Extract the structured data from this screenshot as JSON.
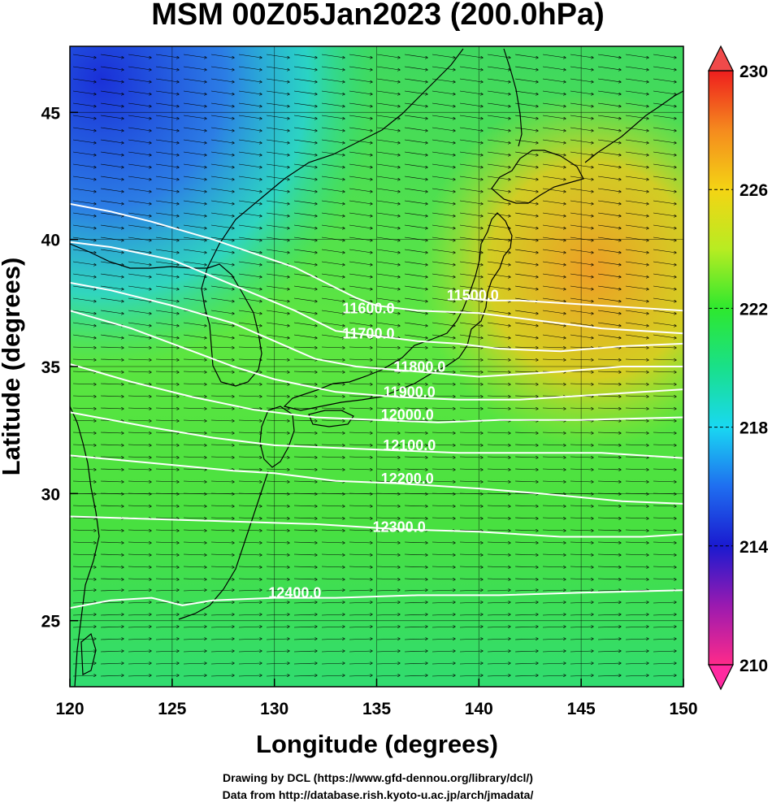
{
  "title": "MSM 00Z05Jan2023 (200.0hPa)",
  "xlabel": "Longitude (degrees)",
  "ylabel": "Latitude  (degrees)",
  "credits": [
    "Drawing by DCL (https://www.gfd-dennou.org/library/dcl/)",
    "Data from http://database.rish.kyoto-u.ac.jp/arch/jmadata/"
  ],
  "chart_data": {
    "type": "heatmap",
    "map": "contour + wind vector map over Japan and surrounding area",
    "xlim": [
      120,
      150
    ],
    "ylim": [
      22.4,
      47.6
    ],
    "x_ticks": [
      "120",
      "125",
      "130",
      "135",
      "140",
      "145",
      "150"
    ],
    "y_ticks": [
      "25",
      "30",
      "35",
      "40",
      "45"
    ],
    "colorbar": {
      "range": [
        210,
        230
      ],
      "tick_labels": [
        "230",
        "226",
        "222",
        "218",
        "214",
        "210"
      ],
      "colors": [
        "#ff2a8a",
        "#9a1ab0",
        "#1a1ad0",
        "#1f6ef0",
        "#19d8f2",
        "#19e08a",
        "#2ee82e",
        "#b8ec22",
        "#f4d414",
        "#f58a1e",
        "#ee1e1e"
      ]
    },
    "contour_labels": [
      {
        "text": "11500.0",
        "lon": 139.7,
        "lat": 37.6
      },
      {
        "text": "11600.0",
        "lon": 134.6,
        "lat": 37.1
      },
      {
        "text": "11700.0",
        "lon": 134.6,
        "lat": 36.1
      },
      {
        "text": "11800.0",
        "lon": 137.1,
        "lat": 34.8
      },
      {
        "text": "11900.0",
        "lon": 136.6,
        "lat": 33.8
      },
      {
        "text": "12000.0",
        "lon": 136.5,
        "lat": 32.9
      },
      {
        "text": "12100.0",
        "lon": 136.6,
        "lat": 31.7
      },
      {
        "text": "12200.0",
        "lon": 136.5,
        "lat": 30.4
      },
      {
        "text": "12300.0",
        "lon": 136.1,
        "lat": 28.5
      },
      {
        "text": "12400.0",
        "lon": 131.0,
        "lat": 25.9
      }
    ],
    "contour_lines": [
      {
        "name": "11500.0",
        "points": [
          [
            139.2,
            37.7
          ],
          [
            140.5,
            37.6
          ],
          [
            142,
            37.6
          ],
          [
            146,
            37.4
          ],
          [
            150,
            37.2
          ]
        ]
      },
      {
        "name": "11600.0",
        "points": [
          [
            120,
            41.4
          ],
          [
            122,
            41.1
          ],
          [
            124,
            40.7
          ],
          [
            127,
            40
          ],
          [
            131,
            38.9
          ],
          [
            134,
            37.7
          ],
          [
            135,
            37.4
          ],
          [
            137,
            37.2
          ],
          [
            140,
            37.1
          ],
          [
            143,
            36.8
          ],
          [
            146,
            36.5
          ],
          [
            150,
            36.3
          ]
        ]
      },
      {
        "name": "11700.0",
        "points": [
          [
            120,
            39.9
          ],
          [
            122,
            39.7
          ],
          [
            125,
            39.2
          ],
          [
            128,
            38.2
          ],
          [
            131,
            37.2
          ],
          [
            133,
            36.4
          ],
          [
            137,
            36
          ],
          [
            139,
            35.9
          ],
          [
            141,
            35.7
          ],
          [
            144,
            35.6
          ],
          [
            147,
            35.8
          ],
          [
            150,
            35.9
          ]
        ]
      },
      {
        "name": "11800.0",
        "points": [
          [
            120,
            38.3
          ],
          [
            122,
            38
          ],
          [
            125,
            37.4
          ],
          [
            128,
            36.7
          ],
          [
            130,
            36
          ],
          [
            132,
            35.3
          ],
          [
            134,
            35
          ],
          [
            137,
            34.8
          ],
          [
            140,
            34.6
          ],
          [
            144,
            34.8
          ],
          [
            147,
            35
          ],
          [
            150,
            35
          ]
        ]
      },
      {
        "name": "11900.0",
        "points": [
          [
            120,
            37.2
          ],
          [
            123,
            36.5
          ],
          [
            126,
            35.6
          ],
          [
            128,
            35
          ],
          [
            130,
            34.5
          ],
          [
            133,
            34
          ],
          [
            136,
            33.8
          ],
          [
            139,
            33.7
          ],
          [
            142,
            33.7
          ],
          [
            146,
            33.9
          ],
          [
            150,
            34.1
          ]
        ]
      },
      {
        "name": "12000.0",
        "points": [
          [
            120,
            35.1
          ],
          [
            123,
            34.4
          ],
          [
            126,
            33.8
          ],
          [
            129,
            33.3
          ],
          [
            132,
            33
          ],
          [
            135,
            32.9
          ],
          [
            138,
            32.8
          ],
          [
            141,
            32.9
          ],
          [
            145,
            32.9
          ],
          [
            150,
            33
          ]
        ]
      },
      {
        "name": "12100.0",
        "points": [
          [
            120,
            33.2
          ],
          [
            124,
            32.6
          ],
          [
            127,
            32.2
          ],
          [
            130,
            31.9
          ],
          [
            133,
            31.8
          ],
          [
            136,
            31.7
          ],
          [
            139,
            31.6
          ],
          [
            142,
            31.6
          ],
          [
            146,
            31.6
          ],
          [
            150,
            31.4
          ]
        ]
      },
      {
        "name": "12200.0",
        "points": [
          [
            120,
            31.5
          ],
          [
            124,
            31.2
          ],
          [
            128,
            30.9
          ],
          [
            130,
            30.8
          ],
          [
            133,
            30.5
          ],
          [
            136,
            30.4
          ],
          [
            140,
            30.2
          ],
          [
            143,
            30
          ],
          [
            147,
            29.7
          ],
          [
            150,
            29.6
          ]
        ]
      },
      {
        "name": "12300.0",
        "points": [
          [
            120,
            29.1
          ],
          [
            124,
            29
          ],
          [
            128,
            28.9
          ],
          [
            132,
            28.8
          ],
          [
            136,
            28.6
          ],
          [
            140,
            28.5
          ],
          [
            144,
            28.3
          ],
          [
            148,
            28.3
          ],
          [
            150,
            28.4
          ]
        ]
      },
      {
        "name": "12400.0",
        "points": [
          [
            120,
            25.5
          ],
          [
            122,
            25.8
          ],
          [
            124,
            25.9
          ],
          [
            125.5,
            25.6
          ],
          [
            127,
            25.8
          ],
          [
            130,
            25.9
          ],
          [
            133,
            25.9
          ],
          [
            137,
            26
          ],
          [
            141,
            26
          ],
          [
            145,
            26.1
          ],
          [
            150,
            26.2
          ]
        ]
      }
    ]
  }
}
